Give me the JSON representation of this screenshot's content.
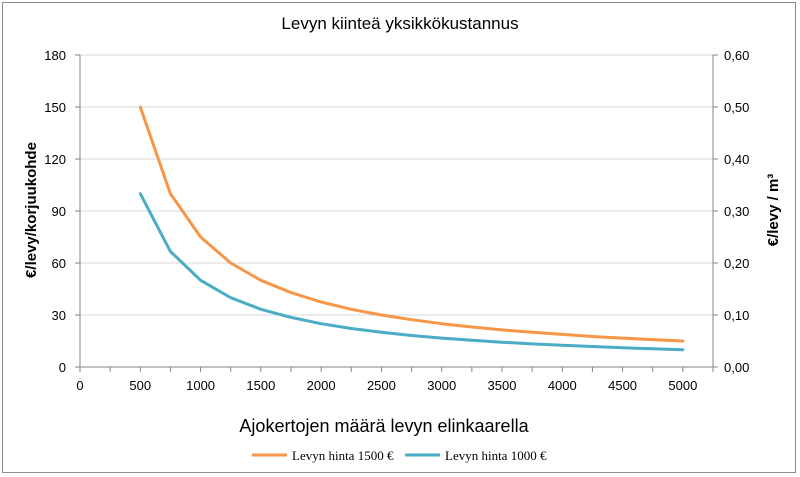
{
  "chart_data": {
    "type": "line",
    "title": "Levyn kiinteä yksikkökustannus",
    "xlabel": "Ajokertojen määrä levyn elinkaarella",
    "ylabel_left": "€/levy/korjuukohde",
    "ylabel_right": "€/levy / m³",
    "xlim": [
      0,
      5250
    ],
    "ylim_left": [
      0,
      180
    ],
    "ylim_right": [
      0,
      0.6
    ],
    "x_ticks": [
      "0",
      "500",
      "1000",
      "1500",
      "2000",
      "2500",
      "3000",
      "3500",
      "4000",
      "4500",
      "5000"
    ],
    "y_left_ticks": [
      "0",
      "30",
      "60",
      "90",
      "120",
      "150",
      "180"
    ],
    "y_right_ticks": [
      "0,00",
      "0,10",
      "0,20",
      "0,30",
      "0,40",
      "0,50",
      "0,60"
    ],
    "x": [
      500,
      750,
      1000,
      1250,
      1500,
      1750,
      2000,
      2250,
      2500,
      2750,
      3000,
      3250,
      3500,
      3750,
      4000,
      4250,
      4500,
      4750,
      5000
    ],
    "series": [
      {
        "name": "Levyn hinta 1500 €",
        "color": "#f79646",
        "values": [
          150,
          100,
          75,
          60,
          50,
          42.9,
          37.5,
          33.3,
          30,
          27.3,
          25,
          23.1,
          21.4,
          20,
          18.8,
          17.6,
          16.7,
          15.8,
          15
        ]
      },
      {
        "name": "Levyn hinta 1000 €",
        "color": "#4bacc6",
        "values": [
          100,
          66.7,
          50,
          40,
          33.3,
          28.6,
          25,
          22.2,
          20,
          18.2,
          16.7,
          15.4,
          14.3,
          13.3,
          12.5,
          11.8,
          11.1,
          10.5,
          10
        ]
      }
    ],
    "grid": "horizontal",
    "legend_position": "bottom"
  }
}
